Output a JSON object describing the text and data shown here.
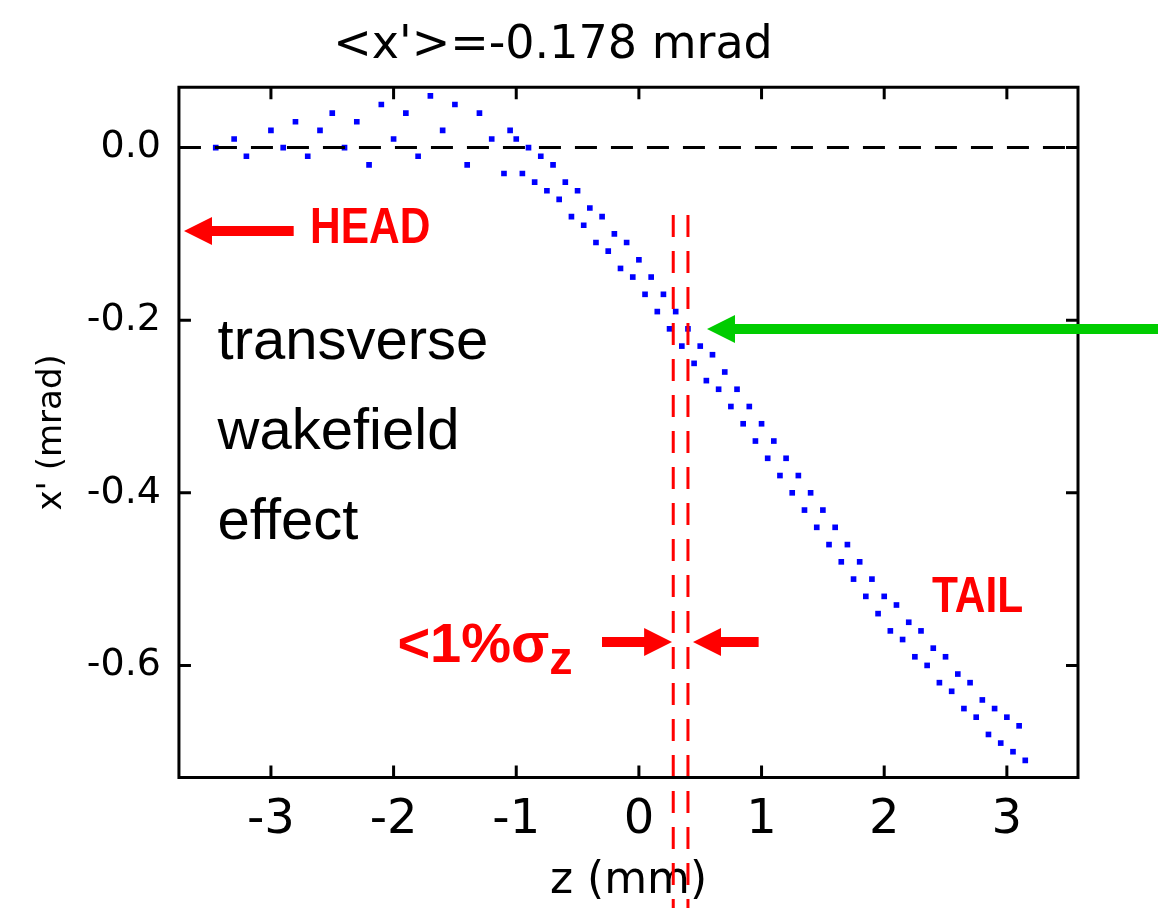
{
  "chart_data": {
    "type": "scatter",
    "title": "<x'>=-0.178 mrad",
    "xlabel": "z (mm)",
    "ylabel": "x' (mrad)",
    "xlim": [
      -3.75,
      3.58
    ],
    "ylim": [
      -0.73,
      0.07
    ],
    "xticks": [
      -3,
      -2,
      -1,
      0,
      1,
      2,
      3
    ],
    "yticks": [
      {
        "value": 0,
        "label": "0.0"
      },
      -0.2,
      -0.4,
      -0.6
    ],
    "marker": "square",
    "series": [
      {
        "color": "#0000ff",
        "x": [
          -3.45,
          -3.3,
          -3.2,
          -3.0,
          -2.9,
          -2.8,
          -2.7,
          -2.6,
          -2.5,
          -2.4,
          -2.3,
          -2.2,
          -2.1,
          -2.0,
          -1.9,
          -1.8,
          -1.7,
          -1.6,
          -1.5,
          -1.4,
          -1.3,
          -1.2,
          -1.1,
          -1.05,
          -1.0,
          -0.95,
          -0.9,
          -0.85,
          -0.8,
          -0.75,
          -0.7,
          -0.65,
          -0.6,
          -0.55,
          -0.5,
          -0.45,
          -0.4,
          -0.35,
          -0.3,
          -0.25,
          -0.2,
          -0.15,
          -0.1,
          -0.05,
          0.0,
          0.05,
          0.1,
          0.15,
          0.2,
          0.25,
          0.3,
          0.35,
          0.4,
          0.45,
          0.5,
          0.55,
          0.6,
          0.65,
          0.7,
          0.75,
          0.8,
          0.85,
          0.9,
          0.95,
          1.0,
          1.05,
          1.1,
          1.15,
          1.2,
          1.25,
          1.3,
          1.35,
          1.4,
          1.45,
          1.5,
          1.55,
          1.6,
          1.65,
          1.7,
          1.75,
          1.8,
          1.85,
          1.9,
          1.95,
          2.0,
          2.05,
          2.1,
          2.15,
          2.2,
          2.25,
          2.3,
          2.35,
          2.4,
          2.45,
          2.5,
          2.55,
          2.6,
          2.65,
          2.7,
          2.75,
          2.8,
          2.85,
          2.9,
          2.95,
          3.0,
          3.05,
          3.1,
          3.15
        ],
        "values": [
          0.0,
          0.01,
          -0.01,
          0.02,
          0.0,
          0.03,
          -0.01,
          0.02,
          0.04,
          0.0,
          0.03,
          -0.02,
          0.05,
          0.01,
          0.04,
          -0.01,
          0.06,
          0.02,
          0.05,
          -0.02,
          0.04,
          0.01,
          -0.03,
          0.02,
          0.01,
          -0.03,
          0.0,
          -0.04,
          -0.01,
          -0.05,
          -0.02,
          -0.06,
          -0.04,
          -0.08,
          -0.05,
          -0.09,
          -0.07,
          -0.11,
          -0.08,
          -0.12,
          -0.1,
          -0.14,
          -0.11,
          -0.15,
          -0.13,
          -0.17,
          -0.15,
          -0.19,
          -0.17,
          -0.21,
          -0.19,
          -0.23,
          -0.21,
          -0.25,
          -0.23,
          -0.27,
          -0.24,
          -0.28,
          -0.26,
          -0.3,
          -0.28,
          -0.32,
          -0.3,
          -0.34,
          -0.32,
          -0.36,
          -0.34,
          -0.38,
          -0.36,
          -0.4,
          -0.38,
          -0.42,
          -0.4,
          -0.44,
          -0.42,
          -0.46,
          -0.44,
          -0.48,
          -0.46,
          -0.5,
          -0.48,
          -0.52,
          -0.5,
          -0.54,
          -0.52,
          -0.56,
          -0.53,
          -0.57,
          -0.55,
          -0.59,
          -0.56,
          -0.6,
          -0.58,
          -0.62,
          -0.59,
          -0.63,
          -0.61,
          -0.65,
          -0.62,
          -0.66,
          -0.64,
          -0.68,
          -0.65,
          -0.69,
          -0.66,
          -0.7,
          -0.67,
          -0.71
        ]
      }
    ],
    "ref_lines": [
      {
        "axis": "y",
        "value": 0,
        "color": "#000000",
        "line_style": "dashed"
      },
      {
        "axis": "x",
        "value": 0.28,
        "color": "#ff0000",
        "line_style": "dashed"
      },
      {
        "axis": "x",
        "value": 0.4,
        "color": "#ff0000",
        "line_style": "dashed"
      }
    ],
    "annotations": [
      "HEAD",
      "TAIL",
      "transverse wakefield effect",
      "<1%σ$_{z}$"
    ]
  }
}
